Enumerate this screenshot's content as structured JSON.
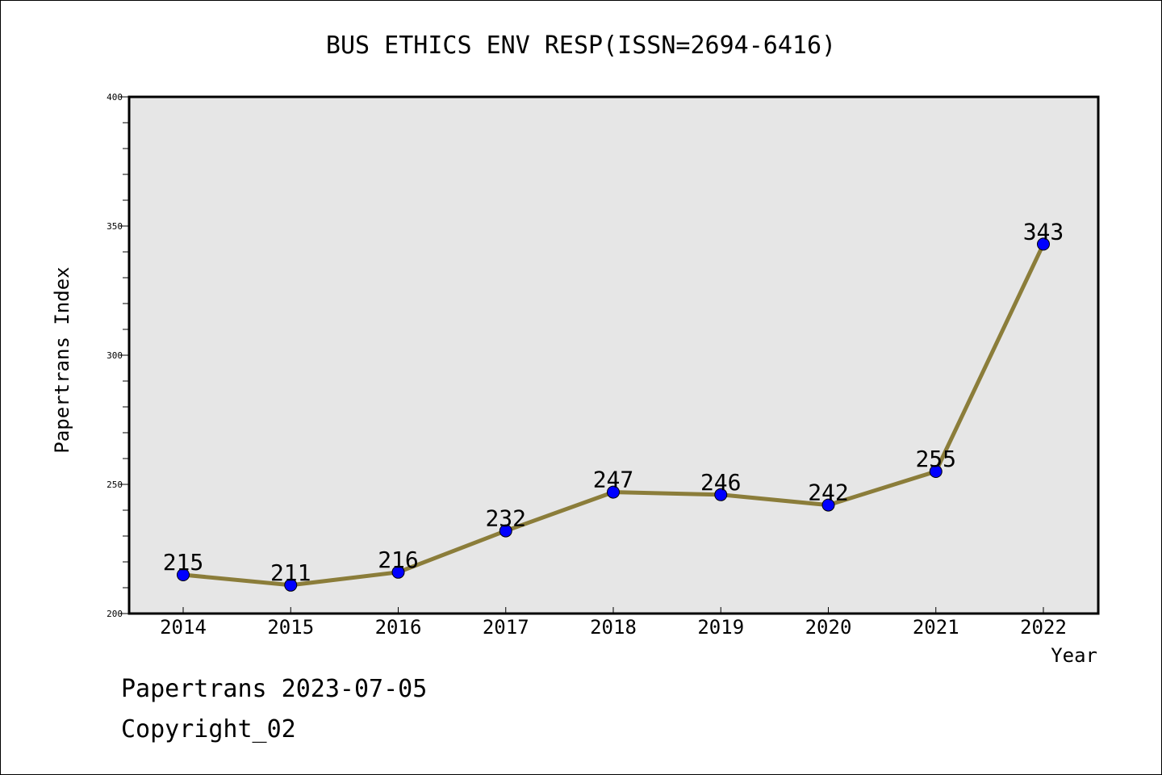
{
  "footer": {
    "source_line": "Papertrans 2023-07-05",
    "copyright_line": "Copyright_02"
  },
  "chart_data": {
    "type": "line",
    "title": "BUS ETHICS ENV RESP(ISSN=2694-6416)",
    "xlabel": "Year",
    "ylabel": "Papertrans Index",
    "categories": [
      "2014",
      "2015",
      "2016",
      "2017",
      "2018",
      "2019",
      "2020",
      "2021",
      "2022"
    ],
    "series": [
      {
        "values": [
          215,
          211,
          216,
          232,
          247,
          246,
          242,
          255,
          343
        ],
        "line_color": "#8b7d3a",
        "marker_color": "#0000ff"
      }
    ],
    "data_labels": [
      "215",
      "211",
      "216",
      "232",
      "247",
      "246",
      "242",
      "255",
      "343"
    ],
    "ylim": [
      200,
      400
    ],
    "y_major_ticks": [
      200,
      250,
      300,
      350,
      400
    ],
    "y_minor_step": 10,
    "plot_background": "#e6e6e6",
    "grid": false,
    "legend": "none"
  }
}
